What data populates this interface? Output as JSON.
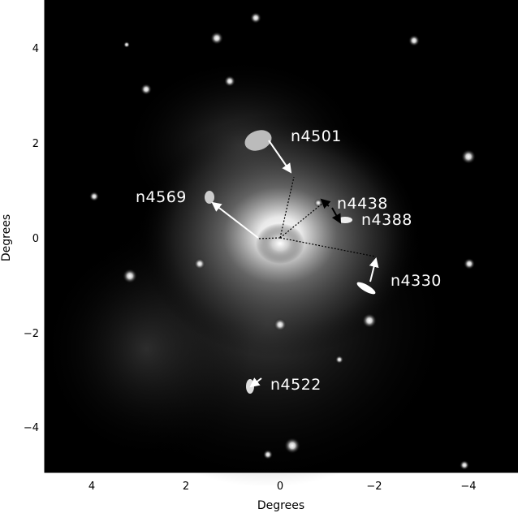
{
  "x_axis": {
    "label": "Degrees",
    "ticks": [
      "4",
      "2",
      "0",
      "−2",
      "−4"
    ]
  },
  "y_axis": {
    "label": "Degrees",
    "ticks": [
      "4",
      "2",
      "0",
      "−2",
      "−4"
    ]
  },
  "galaxies": [
    {
      "name": "n4501",
      "arrow_color": "#ffffff"
    },
    {
      "name": "n4569",
      "arrow_color": "#ffffff"
    },
    {
      "name": "n4438",
      "arrow_color": "#000000"
    },
    {
      "name": "n4388",
      "arrow_color": "#000000"
    },
    {
      "name": "n4330",
      "arrow_color": "#ffffff"
    },
    {
      "name": "n4522",
      "arrow_color": "#ffffff"
    }
  ]
}
